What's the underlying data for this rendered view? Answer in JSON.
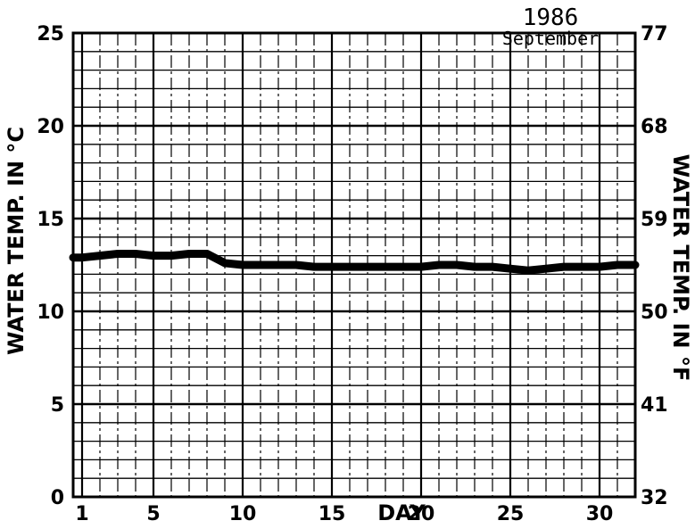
{
  "chart_data": {
    "type": "line",
    "title": "1986",
    "subtitle": "September",
    "xlabel": "DAY",
    "ylabel": "WATER TEMP. IN °C",
    "ylabel_right": "WATER TEMP. IN °F",
    "xlim": [
      0.5,
      32
    ],
    "ylim": [
      0,
      25
    ],
    "x_ticks": [
      1,
      5,
      10,
      15,
      20,
      25,
      30
    ],
    "x_tick_labels": [
      "1",
      "5",
      "10",
      "15",
      "20",
      "25",
      "30"
    ],
    "y_ticks": [
      0,
      5,
      10,
      15,
      20,
      25
    ],
    "y_tick_labels": [
      "0",
      "5",
      "10",
      "15",
      "20",
      "25"
    ],
    "y_right_ticks": [
      0,
      5,
      10,
      15,
      20,
      25
    ],
    "y_right_tick_labels": [
      "32",
      "41",
      "50",
      "59",
      "68",
      "77"
    ],
    "grid": true,
    "series": [
      {
        "name": "",
        "color": "#000000",
        "x": [
          0.5,
          1,
          2,
          3,
          4,
          5,
          6,
          7,
          8,
          9,
          10,
          11,
          12,
          13,
          14,
          15,
          16,
          17,
          18,
          19,
          20,
          21,
          22,
          23,
          24,
          25,
          26,
          27,
          28,
          29,
          30,
          31,
          32
        ],
        "values": [
          12.9,
          12.9,
          13.0,
          13.1,
          13.1,
          13.0,
          13.0,
          13.1,
          13.1,
          12.6,
          12.5,
          12.5,
          12.5,
          12.5,
          12.4,
          12.4,
          12.4,
          12.4,
          12.4,
          12.4,
          12.4,
          12.5,
          12.5,
          12.4,
          12.4,
          12.3,
          12.2,
          12.3,
          12.4,
          12.4,
          12.4,
          12.5,
          12.5
        ]
      }
    ]
  }
}
